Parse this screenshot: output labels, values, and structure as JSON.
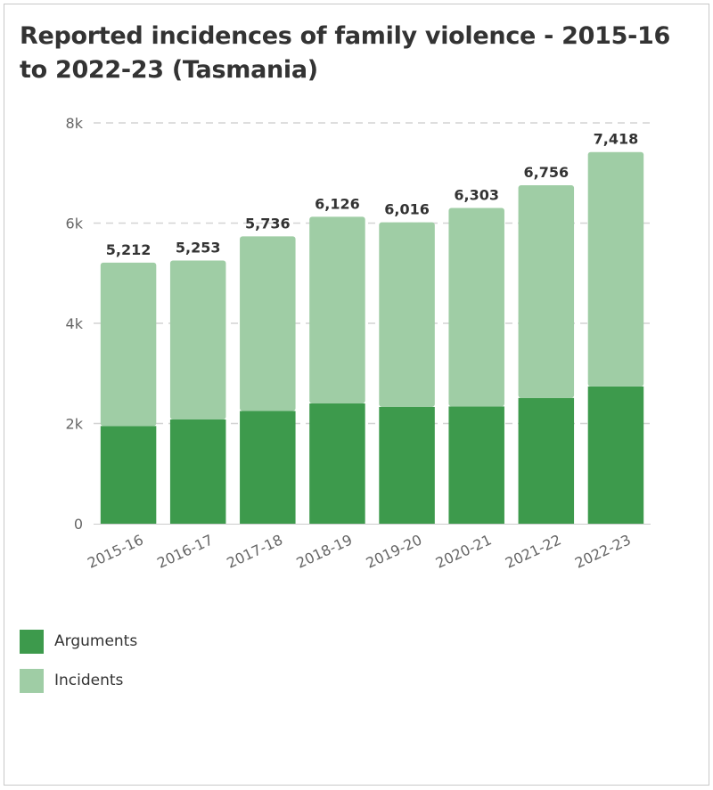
{
  "title": "Reported incidences of family violence - 2015-16 to 2022-23 (Tasmania)",
  "colors": {
    "arguments": "#3d9a4c",
    "incidents": "#9fcda5",
    "grid": "#d4d4d4",
    "axis_text": "#666666",
    "label_text": "#333333"
  },
  "chart_data": {
    "type": "bar",
    "stacked": true,
    "categories": [
      "2015-16",
      "2016-17",
      "2017-18",
      "2018-19",
      "2019-20",
      "2020-21",
      "2021-22",
      "2022-23"
    ],
    "series": [
      {
        "name": "Arguments",
        "values": [
          1950,
          2080,
          2250,
          2400,
          2330,
          2340,
          2510,
          2740
        ]
      },
      {
        "name": "Incidents",
        "values": [
          3262,
          3173,
          3486,
          3726,
          3686,
          3963,
          4246,
          4678
        ]
      }
    ],
    "totals": [
      5212,
      5253,
      5736,
      6126,
      6016,
      6303,
      6756,
      7418
    ],
    "total_labels": [
      "5,212",
      "5,253",
      "5,736",
      "6,126",
      "6,016",
      "6,303",
      "6,756",
      "7,418"
    ],
    "y_ticks": [
      0,
      2000,
      4000,
      6000,
      8000
    ],
    "y_tick_labels": [
      "0",
      "2k",
      "4k",
      "6k",
      "8k"
    ],
    "ylim": [
      0,
      8000
    ],
    "grid": "horizontal-dashed",
    "legend_position": "bottom-left"
  },
  "legend": [
    {
      "label": "Arguments",
      "color": "#3d9a4c"
    },
    {
      "label": "Incidents",
      "color": "#9fcda5"
    }
  ]
}
